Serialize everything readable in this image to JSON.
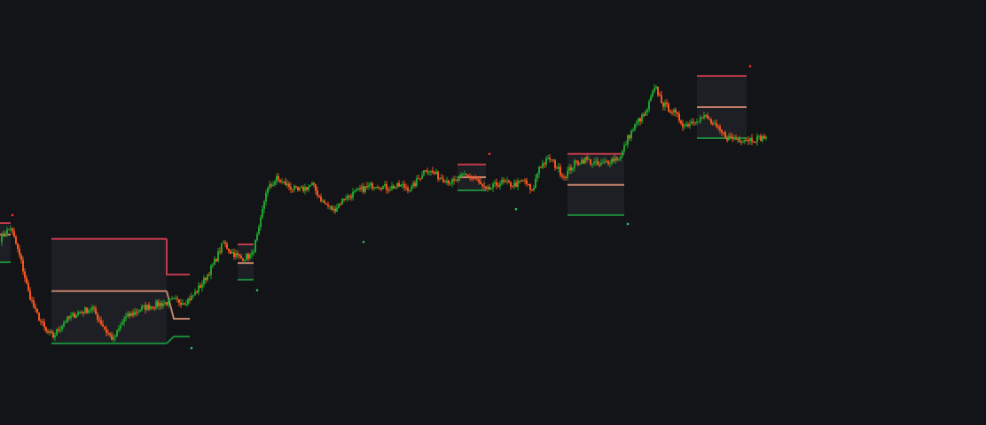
{
  "chart_data": {
    "type": "candlestick",
    "title": "",
    "xlabel": "",
    "ylabel": "",
    "ylim": [
      0,
      100
    ],
    "grid": false,
    "colors": {
      "background": "#131417",
      "up": "#1fa12c",
      "down": "#f2551f",
      "range_high": "#c13a4b",
      "range_mid": "#c4806a",
      "range_low": "#1a8a3a",
      "range_fill": "#1d1f24",
      "marker_high": "#ff2d2d",
      "marker_low": "#22c55e"
    },
    "price_anchors": [
      [
        0,
        43.8
      ],
      [
        6,
        46.5
      ],
      [
        9,
        42.6
      ],
      [
        12,
        38.3
      ],
      [
        16,
        31.3
      ],
      [
        20,
        26.7
      ],
      [
        26,
        21.9
      ],
      [
        30,
        20.8
      ],
      [
        36,
        24.2
      ],
      [
        44,
        26.5
      ],
      [
        52,
        27.4
      ],
      [
        60,
        22.0
      ],
      [
        64,
        20.0
      ],
      [
        70,
        25.0
      ],
      [
        80,
        27.5
      ],
      [
        90,
        28.5
      ],
      [
        98,
        29.2
      ],
      [
        104,
        29.0
      ],
      [
        108,
        30.0
      ],
      [
        114,
        33.3
      ],
      [
        120,
        37.5
      ],
      [
        126,
        42.9
      ],
      [
        130,
        40.8
      ],
      [
        136,
        39.2
      ],
      [
        142,
        40.0
      ],
      [
        146,
        45.8
      ],
      [
        150,
        55.0
      ],
      [
        156,
        57.9
      ],
      [
        160,
        56.9
      ],
      [
        168,
        55.0
      ],
      [
        176,
        56.5
      ],
      [
        182,
        52.5
      ],
      [
        188,
        50.5
      ],
      [
        194,
        53.3
      ],
      [
        200,
        54.6
      ],
      [
        206,
        55.8
      ],
      [
        212,
        56.7
      ],
      [
        218,
        55.8
      ],
      [
        226,
        56.3
      ],
      [
        232,
        55.6
      ],
      [
        240,
        60.4
      ],
      [
        248,
        58.3
      ],
      [
        256,
        57.0
      ],
      [
        262,
        58.8
      ],
      [
        268,
        57.9
      ],
      [
        274,
        55.0
      ],
      [
        282,
        57.1
      ],
      [
        290,
        56.5
      ],
      [
        296,
        57.5
      ],
      [
        300,
        54.6
      ],
      [
        304,
        60.8
      ],
      [
        310,
        62.7
      ],
      [
        318,
        58.5
      ],
      [
        324,
        61.5
      ],
      [
        330,
        62.5
      ],
      [
        338,
        61.0
      ],
      [
        344,
        62.3
      ],
      [
        350,
        63.1
      ],
      [
        354,
        67.5
      ],
      [
        360,
        71.7
      ],
      [
        364,
        73.1
      ],
      [
        368,
        78.1
      ],
      [
        370,
        79.0
      ],
      [
        374,
        75.5
      ],
      [
        380,
        73.5
      ],
      [
        386,
        70.4
      ],
      [
        392,
        71.9
      ],
      [
        398,
        72.5
      ],
      [
        404,
        69.8
      ],
      [
        410,
        67.7
      ],
      [
        416,
        67.3
      ],
      [
        424,
        67.3
      ],
      [
        432,
        67.7
      ]
    ],
    "range_boxes": [
      {
        "start": 0,
        "end": 6,
        "high": 47.5,
        "mid": 44.8,
        "low": 38.3
      },
      {
        "start": 29,
        "end": 94,
        "high": 43.8,
        "mid": 31.5,
        "low": 19.2
      },
      {
        "start": 134,
        "end": 143,
        "high": 42.5,
        "mid": 38.1,
        "low": 34.2
      },
      {
        "start": 258,
        "end": 274,
        "high": 61.3,
        "mid": 58.3,
        "low": 55.2
      },
      {
        "start": 320,
        "end": 352,
        "high": 63.8,
        "mid": 56.5,
        "low": 49.4
      },
      {
        "start": 393,
        "end": 421,
        "high": 82.1,
        "mid": 74.8,
        "low": 67.5
      }
    ],
    "stepped_segment": [
      {
        "x": 94,
        "high": 35.4,
        "mid": 31.5,
        "low": 19.2
      },
      {
        "x": 98,
        "high": 35.4,
        "mid": 25.0,
        "low": 20.8
      },
      {
        "x": 107,
        "high": 35.4,
        "mid": 25.0,
        "low": 20.8
      }
    ],
    "markers": [
      {
        "kind": "high",
        "x": 7,
        "y": 49.4
      },
      {
        "kind": "low",
        "x": 108,
        "y": 18.1
      },
      {
        "kind": "low",
        "x": 145,
        "y": 31.7
      },
      {
        "kind": "low",
        "x": 205,
        "y": 43.1
      },
      {
        "kind": "high",
        "x": 276,
        "y": 63.8
      },
      {
        "kind": "low",
        "x": 291,
        "y": 50.8
      },
      {
        "kind": "low",
        "x": 354,
        "y": 47.3
      },
      {
        "kind": "high",
        "x": 423,
        "y": 84.4
      }
    ]
  }
}
